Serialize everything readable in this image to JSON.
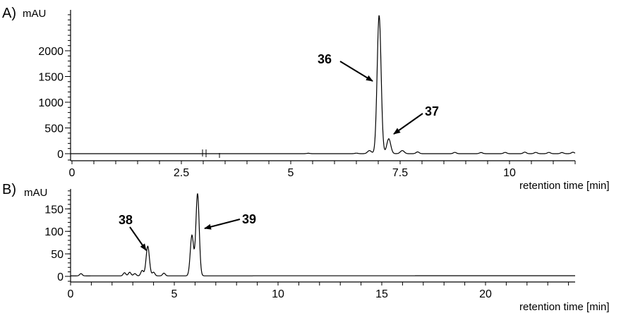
{
  "chart_data": [
    {
      "type": "line",
      "panel_label": "A)",
      "ylabel": "mAU",
      "xlabel": "retention time [min]",
      "xlim": [
        0,
        11.5
      ],
      "ylim": [
        -50,
        2800
      ],
      "x_ticks": [
        "0",
        "2.5",
        "5",
        "7.5",
        "10"
      ],
      "y_ticks": [
        "0",
        "500",
        "1000",
        "1500",
        "2000"
      ],
      "grid": false,
      "peaks": [
        {
          "label": "36",
          "x": 7.02,
          "y": 2690
        },
        {
          "label": "37",
          "x": 7.24,
          "y": 290
        }
      ],
      "minor_peaks": [
        {
          "x": 5.4,
          "y": 8
        },
        {
          "x": 6.5,
          "y": 10
        },
        {
          "x": 6.8,
          "y": 60
        },
        {
          "x": 7.55,
          "y": 60
        },
        {
          "x": 7.9,
          "y": 35
        },
        {
          "x": 8.75,
          "y": 25
        },
        {
          "x": 9.35,
          "y": 22
        },
        {
          "x": 9.9,
          "y": 25
        },
        {
          "x": 10.35,
          "y": 30
        },
        {
          "x": 10.6,
          "y": 25
        },
        {
          "x": 10.9,
          "y": 25
        },
        {
          "x": 11.2,
          "y": 22
        },
        {
          "x": 11.45,
          "y": 28
        }
      ]
    },
    {
      "type": "line",
      "panel_label": "B)",
      "ylabel": "mAU",
      "xlabel": "retention time [min]",
      "xlim": [
        0,
        24.4
      ],
      "ylim": [
        -8,
        190
      ],
      "x_ticks": [
        "0",
        "5",
        "10",
        "15",
        "20"
      ],
      "y_ticks": [
        "0",
        "50",
        "100",
        "150"
      ],
      "grid": false,
      "peaks": [
        {
          "label": "38",
          "x": 3.72,
          "y": 66
        },
        {
          "label": "39",
          "x": 6.12,
          "y": 183
        }
      ],
      "minor_peaks": [
        {
          "x": 0.5,
          "y": 5
        },
        {
          "x": 2.6,
          "y": 7
        },
        {
          "x": 2.85,
          "y": 8
        },
        {
          "x": 3.1,
          "y": 5
        },
        {
          "x": 3.45,
          "y": 12
        },
        {
          "x": 4.0,
          "y": 8
        },
        {
          "x": 4.5,
          "y": 6
        },
        {
          "x": 5.85,
          "y": 90
        }
      ]
    }
  ]
}
